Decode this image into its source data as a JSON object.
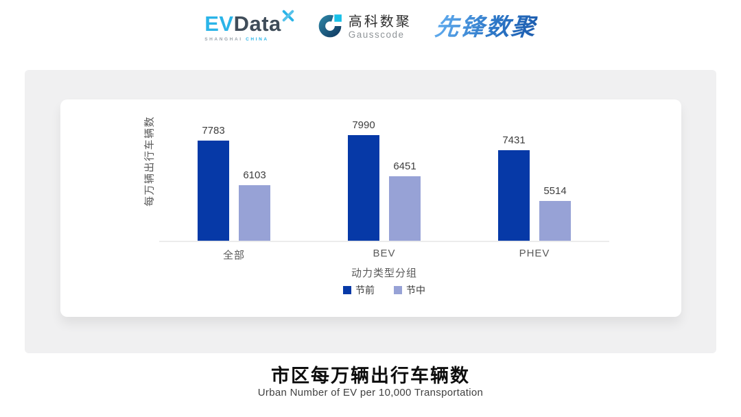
{
  "header": {
    "evdata_logo": {
      "ev": "EV",
      "data": "Data",
      "tagline_city": "SHANGHAI",
      "tagline_country": "CHINA",
      "ev_color": "#2ab4e8",
      "data_color": "#3f4c59"
    },
    "gausscode_logo": {
      "name_cn": "高科数聚",
      "name_en": "Gausscode",
      "icon_colors": {
        "ring_start": "#2a7d9e",
        "ring_end": "#123f66",
        "square": "#18c0e8"
      }
    },
    "pioneer_logo": {
      "text": "先锋数聚",
      "color": "#2e79c9"
    }
  },
  "chart_data": {
    "type": "bar",
    "categories": [
      "全部",
      "BEV",
      "PHEV"
    ],
    "series": [
      {
        "name": "节前",
        "color": "#0639a7",
        "values": [
          7783,
          7990,
          7431
        ]
      },
      {
        "name": "节中",
        "color": "#97a2d6",
        "values": [
          6103,
          6451,
          5514
        ]
      }
    ],
    "title": "",
    "xlabel": "动力类型分组",
    "ylabel": "每万辆出行车辆数",
    "ylim": [
      4000,
      9400
    ],
    "grid": false,
    "legend_position": "bottom",
    "value_labels": true
  },
  "footer": {
    "title": "市区每万辆出行车辆数",
    "subtitle": "Urban Number of EV per 10,000 Transportation"
  }
}
